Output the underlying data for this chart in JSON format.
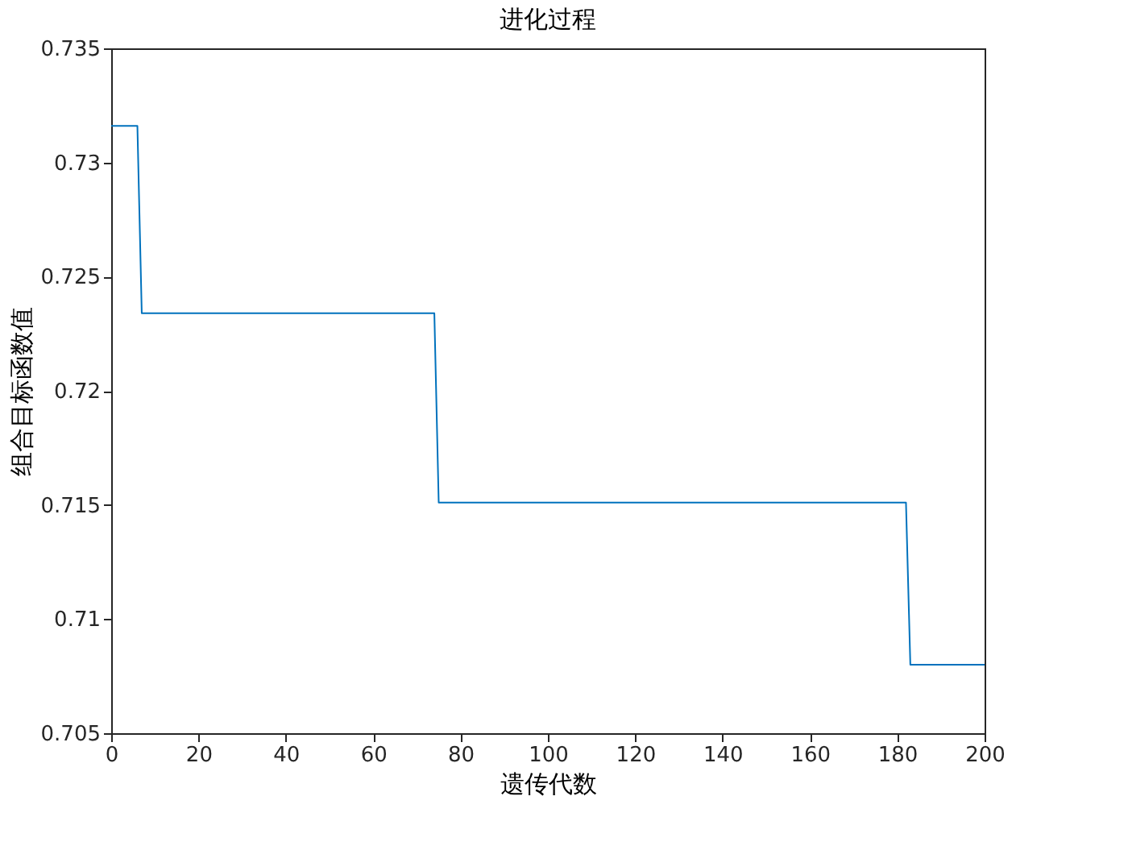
{
  "chart_data": {
    "type": "line",
    "title": "进化过程",
    "xlabel": "遗传代数",
    "ylabel": "组合目标函数值",
    "x": [
      0,
      6,
      7,
      74,
      75,
      182,
      183,
      200
    ],
    "series": [
      {
        "color": "#0072bd",
        "values": [
          0.7316,
          0.7316,
          0.7234,
          0.7234,
          0.7151,
          0.7151,
          0.708,
          0.708
        ]
      }
    ],
    "xlim": [
      0,
      200
    ],
    "xticks": [
      0,
      20,
      40,
      60,
      80,
      100,
      120,
      140,
      160,
      180,
      200
    ],
    "ylim": [
      0.705,
      0.735
    ],
    "yticks": [
      0.705,
      0.71,
      0.715,
      0.72,
      0.725,
      0.73,
      0.735
    ],
    "grid": false,
    "legend": false,
    "marker": "none",
    "line_style": "solid"
  }
}
